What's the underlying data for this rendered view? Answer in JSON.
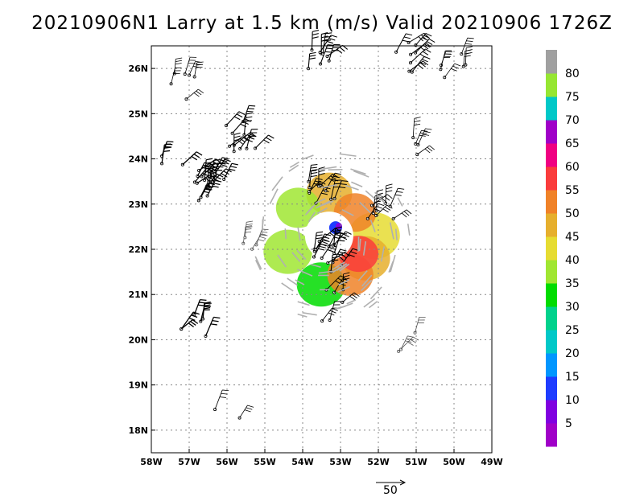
{
  "title": "20210906N1 Larry at 1.5 km (m/s) Valid 20210906 1726Z",
  "map": {
    "lon_range": [
      -58,
      -49
    ],
    "lat_range": [
      17.5,
      26.5
    ],
    "lon_ticks": [
      "58W",
      "57W",
      "56W",
      "55W",
      "54W",
      "53W",
      "52W",
      "51W",
      "50W",
      "49W"
    ],
    "lat_ticks": [
      "18N",
      "19N",
      "20N",
      "21N",
      "22N",
      "23N",
      "24N",
      "25N",
      "26N"
    ],
    "grid": "dotted",
    "storm_center": [
      -53.3,
      22.3
    ]
  },
  "colorbar": {
    "labels": [
      "5",
      "10",
      "15",
      "20",
      "25",
      "30",
      "35",
      "40",
      "45",
      "50",
      "55",
      "60",
      "65",
      "70",
      "75",
      "80"
    ],
    "colors": [
      "#a000c8",
      "#8000e0",
      "#1e3cff",
      "#0096ff",
      "#00c8c8",
      "#00d28c",
      "#00dc00",
      "#a0e632",
      "#e6dc32",
      "#e6af2d",
      "#f08228",
      "#fa3c3c",
      "#f00082",
      "#a000c8",
      "#00c8c8",
      "#96e632",
      "#a0a0a0"
    ]
  },
  "reference_vector": {
    "label": "50"
  }
}
